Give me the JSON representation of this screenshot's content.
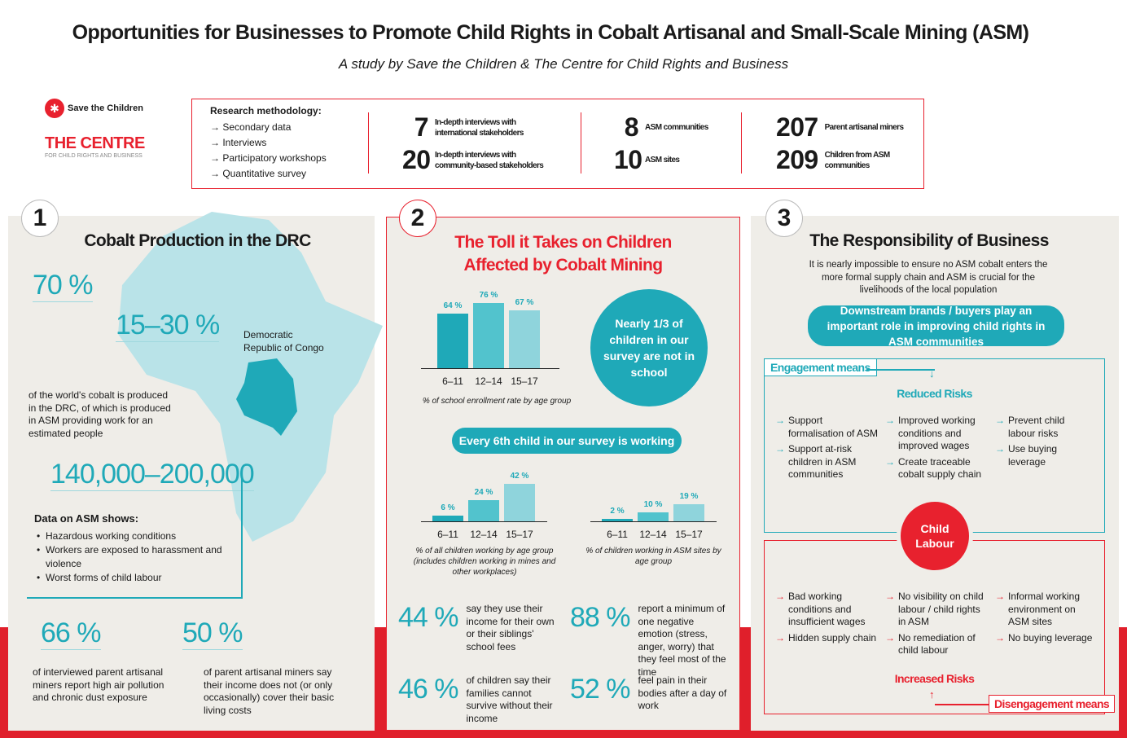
{
  "header": {
    "title": "Opportunities for Businesses to Promote Child Rights in Cobalt Artisanal and Small-Scale Mining (ASM)",
    "subtitle": "A study by Save the Children & The Centre for Child Rights and Business"
  },
  "logos": {
    "save_the_children": "Save the Children",
    "centre": "THE CENTRE",
    "centre_sub": "FOR CHILD RIGHTS AND BUSINESS"
  },
  "colors": {
    "teal": "#1fa9b8",
    "red": "#e8212e",
    "panel": "#efede8"
  },
  "methodology": {
    "heading": "Research methodology:",
    "items": [
      "Secondary data",
      "Interviews",
      "Participatory workshops",
      "Quantitative survey"
    ],
    "stats": [
      {
        "value": "7",
        "label": "In-depth interviews with international stakeholders"
      },
      {
        "value": "20",
        "label": "In-depth interviews with community-based stakeholders"
      },
      {
        "value": "8",
        "label": "ASM communities"
      },
      {
        "value": "10",
        "label": "ASM sites"
      },
      {
        "value": "207",
        "label": "Parent artisanal miners"
      },
      {
        "value": "209",
        "label": "Children from ASM communities"
      }
    ]
  },
  "section1": {
    "number": "1",
    "title": "Cobalt Production in the DRC",
    "pct70": "70 %",
    "pct1530": "15–30 %",
    "country": "Democratic Republic of Congo",
    "text": "of the world's cobalt is produced in the DRC, of which is produced in ASM providing work for an estimated        people",
    "range": "140,000–200,000",
    "data_heading": "Data on ASM shows:",
    "bullets": [
      "Hazardous working conditions",
      "Workers are exposed to harassment and violence",
      "Worst forms of child labour"
    ],
    "stat66": "66 %",
    "stat66_text": "of interviewed parent artisanal miners report high air pollution and chronic dust exposure",
    "stat50": "50 %",
    "stat50_text": "of parent artisanal miners say their income does not (or only occasionally) cover their basic living costs"
  },
  "section2": {
    "number": "2",
    "title_line1": "The Toll it Takes on Children",
    "title_line2": "Affected by Cobalt Mining",
    "circle_text": "Nearly 1/3 of children in our survey are not in school",
    "pill": "Every 6th child in our survey is working",
    "stats": [
      {
        "value": "44 %",
        "text": "say they use their income for their own or their siblings' school fees"
      },
      {
        "value": "88 %",
        "text": "report a minimum of one negative emotion (stress, anger, worry) that they feel most of the time"
      },
      {
        "value": "46 %",
        "text": "of children say their families cannot survive without their income"
      },
      {
        "value": "52 %",
        "text": "feel pain in their bodies after a day of work"
      }
    ]
  },
  "chart_data": [
    {
      "type": "bar",
      "categories": [
        "6–11",
        "12–14",
        "15–17"
      ],
      "values": [
        64,
        76,
        67
      ],
      "value_labels": [
        "64 %",
        "76 %",
        "67 %"
      ],
      "xlabel": "% of school enrollment rate by age group",
      "colors": [
        "#1fa9b8",
        "#52c3cd",
        "#8fd4dc"
      ]
    },
    {
      "type": "bar",
      "categories": [
        "6–11",
        "12–14",
        "15–17"
      ],
      "values": [
        6,
        24,
        42
      ],
      "value_labels": [
        "6 %",
        "24 %",
        "42 %"
      ],
      "xlabel": "% of all children working by age group (includes children working in mines and other workplaces)",
      "colors": [
        "#1fa9b8",
        "#52c3cd",
        "#8fd4dc"
      ]
    },
    {
      "type": "bar",
      "categories": [
        "6–11",
        "12–14",
        "15–17"
      ],
      "values": [
        2,
        10,
        19
      ],
      "value_labels": [
        "2 %",
        "10 %",
        "19 %"
      ],
      "xlabel": "% of children working in ASM sites by age group",
      "colors": [
        "#1fa9b8",
        "#52c3cd",
        "#8fd4dc"
      ]
    }
  ],
  "section3": {
    "number": "3",
    "title": "The Responsibility of Business",
    "intro": "It is nearly impossible to ensure no ASM cobalt enters the more formal supply chain and ASM is crucial for the livelihoods of the local population",
    "pill": "Downstream brands / buyers play an important role in improving child rights in ASM communities",
    "engagement_label": "Engagement means",
    "reduced_risks": "Reduced Risks",
    "engagement_cols": [
      [
        "Support formalisation of ASM",
        "Support at-risk children in ASM communities"
      ],
      [
        "Improved working conditions and improved wages",
        "Create traceable cobalt supply chain"
      ],
      [
        "Prevent child labour risks",
        "Use buying leverage"
      ]
    ],
    "center": "Child Labour",
    "disengagement_cols": [
      [
        "Bad working conditions and insufficient wages",
        "Hidden supply chain"
      ],
      [
        "No visibility on child labour / child rights in ASM",
        "No remediation of child labour"
      ],
      [
        "Informal working environment on ASM sites",
        "No buying leverage"
      ]
    ],
    "increased_risks": "Increased Risks",
    "disengagement_label": "Disengagement means"
  }
}
